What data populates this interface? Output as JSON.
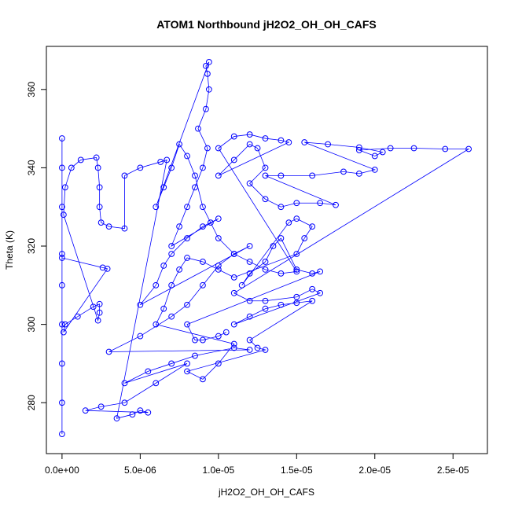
{
  "chart_data": {
    "type": "scatter",
    "title": "ATOM1 Northbound jH2O2_OH_OH_CAFS",
    "xlabel": "jH2O2_OH_OH_CAFS",
    "ylabel": "Theta (K)",
    "xlim": [
      -1e-06,
      2.72e-05
    ],
    "ylim": [
      267,
      371
    ],
    "x_ticks": [
      0,
      5e-06,
      1e-05,
      1.5e-05,
      2e-05,
      2.5e-05
    ],
    "x_tick_labels": [
      "0.0e+00",
      "5.0e-06",
      "1.0e-05",
      "1.5e-05",
      "2.0e-05",
      "2.5e-05"
    ],
    "y_ticks": [
      280,
      300,
      320,
      340,
      360
    ],
    "y_tick_labels": [
      "280",
      "300",
      "320",
      "340",
      "360"
    ],
    "marker": "open-circle",
    "connected": true,
    "grid": false,
    "colors": {
      "series": "#0000ff",
      "axis": "#000000",
      "background": "#ffffff"
    },
    "series": [
      {
        "points": [
          [
            0,
            272
          ],
          [
            0,
            280
          ],
          [
            0,
            290
          ],
          [
            0,
            300
          ],
          [
            0,
            310
          ],
          [
            0,
            318
          ],
          [
            0,
            330
          ],
          [
            0,
            340
          ],
          [
            0,
            347.5
          ],
          [
            0,
            317
          ],
          [
            2.6e-06,
            314.5
          ],
          [
            2.9e-06,
            314.2
          ],
          [
            1e-07,
            298
          ],
          [
            2e-07,
            300
          ],
          [
            1e-06,
            302
          ],
          [
            2e-06,
            304.5
          ],
          [
            2.4e-06,
            305.2
          ],
          [
            2.4e-06,
            303
          ],
          [
            2.3e-06,
            301
          ],
          [
            1e-07,
            328
          ],
          [
            2e-07,
            335
          ],
          [
            6e-07,
            340
          ],
          [
            1.2e-06,
            342
          ],
          [
            2.2e-06,
            342.6
          ],
          [
            2.3e-06,
            340
          ],
          [
            2.4e-06,
            335
          ],
          [
            2.4e-06,
            330
          ],
          [
            2.5e-06,
            326
          ],
          [
            3e-06,
            325
          ],
          [
            4e-06,
            324.5
          ],
          [
            4e-06,
            338
          ],
          [
            5e-06,
            340
          ],
          [
            6.3e-06,
            341.5
          ],
          [
            6.7e-06,
            342
          ],
          [
            3.5e-06,
            276
          ],
          [
            4.5e-06,
            277
          ],
          [
            5e-06,
            278
          ],
          [
            5.5e-06,
            277.5
          ],
          [
            1.5e-06,
            278
          ],
          [
            2.5e-06,
            279
          ],
          [
            4e-06,
            280
          ],
          [
            6e-06,
            285
          ],
          [
            8e-06,
            290
          ],
          [
            4e-06,
            285
          ],
          [
            5.5e-06,
            288
          ],
          [
            7e-06,
            290
          ],
          [
            8.5e-06,
            292
          ],
          [
            1.1e-05,
            294
          ],
          [
            1.2e-05,
            293.5
          ],
          [
            3e-06,
            293
          ],
          [
            5e-06,
            297
          ],
          [
            7e-06,
            302
          ],
          [
            8e-06,
            305
          ],
          [
            9e-06,
            310
          ],
          [
            1e-05,
            315
          ],
          [
            1.1e-05,
            318
          ],
          [
            1.2e-05,
            320
          ],
          [
            5e-06,
            305
          ],
          [
            6e-06,
            310
          ],
          [
            6.5e-06,
            315
          ],
          [
            7e-06,
            318
          ],
          [
            8e-06,
            322
          ],
          [
            9e-06,
            325
          ],
          [
            1e-05,
            327
          ],
          [
            7e-06,
            320
          ],
          [
            7.5e-06,
            325
          ],
          [
            8e-06,
            330
          ],
          [
            8.5e-06,
            335
          ],
          [
            9e-06,
            340
          ],
          [
            9.3e-06,
            345
          ],
          [
            8.7e-06,
            350
          ],
          [
            9.2e-06,
            355
          ],
          [
            9.4e-06,
            360
          ],
          [
            9.3e-06,
            364
          ],
          [
            9.2e-06,
            366
          ],
          [
            9.4e-06,
            367
          ],
          [
            6e-06,
            330
          ],
          [
            6.5e-06,
            335
          ],
          [
            7e-06,
            340
          ],
          [
            7.5e-06,
            346
          ],
          [
            8e-06,
            343
          ],
          [
            8.5e-06,
            338
          ],
          [
            9e-06,
            330
          ],
          [
            9.5e-06,
            326
          ],
          [
            1e-05,
            322
          ],
          [
            1.1e-05,
            318
          ],
          [
            1.2e-05,
            316
          ],
          [
            1.3e-05,
            314
          ],
          [
            1.4e-05,
            313
          ],
          [
            1.5e-05,
            313.5
          ],
          [
            1e-05,
            345
          ],
          [
            1.1e-05,
            348
          ],
          [
            1.2e-05,
            348.5
          ],
          [
            1.3e-05,
            347.5
          ],
          [
            1.4e-05,
            347
          ],
          [
            1.45e-05,
            346.5
          ],
          [
            1e-05,
            338
          ],
          [
            1.1e-05,
            342
          ],
          [
            1.2e-05,
            346
          ],
          [
            1.25e-05,
            345
          ],
          [
            1.3e-05,
            340
          ],
          [
            1.2e-05,
            336
          ],
          [
            1.3e-05,
            332
          ],
          [
            1.4e-05,
            330
          ],
          [
            1.5e-05,
            331
          ],
          [
            1.65e-05,
            331
          ],
          [
            1.75e-05,
            330.5
          ],
          [
            1.3e-05,
            338
          ],
          [
            1.4e-05,
            338
          ],
          [
            1.6e-05,
            338
          ],
          [
            1.8e-05,
            339
          ],
          [
            1.9e-05,
            338.5
          ],
          [
            2e-05,
            339.5
          ],
          [
            1.55e-05,
            346.5
          ],
          [
            1.7e-05,
            346
          ],
          [
            1.9e-05,
            345.2
          ],
          [
            2.05e-05,
            344
          ],
          [
            2e-05,
            343
          ],
          [
            1.9e-05,
            344.5
          ],
          [
            2.1e-05,
            345
          ],
          [
            2.25e-05,
            345
          ],
          [
            2.45e-05,
            344.8
          ],
          [
            2.6e-05,
            344.8
          ],
          [
            1.1e-05,
            308
          ],
          [
            1.2e-05,
            306
          ],
          [
            1.3e-05,
            306
          ],
          [
            1.5e-05,
            307
          ],
          [
            1.6e-05,
            309
          ],
          [
            1.65e-05,
            308
          ],
          [
            1.1e-05,
            300
          ],
          [
            1.2e-05,
            302
          ],
          [
            1.3e-05,
            304
          ],
          [
            1.4e-05,
            305
          ],
          [
            1.5e-05,
            305.5
          ],
          [
            1.6e-05,
            306
          ],
          [
            1.2e-05,
            296
          ],
          [
            1.25e-05,
            294
          ],
          [
            1.3e-05,
            293.5
          ],
          [
            8e-06,
            288
          ],
          [
            9e-06,
            286
          ],
          [
            1e-05,
            290
          ],
          [
            1.1e-05,
            295
          ],
          [
            6e-06,
            300
          ],
          [
            6.5e-06,
            304
          ],
          [
            7e-06,
            310
          ],
          [
            7.5e-06,
            314
          ],
          [
            8e-06,
            317
          ],
          [
            9e-06,
            316
          ],
          [
            1e-05,
            314
          ],
          [
            1.1e-05,
            312
          ],
          [
            1.5e-05,
            318
          ],
          [
            1.55e-05,
            322
          ],
          [
            1.6e-05,
            325
          ],
          [
            1.5e-05,
            327
          ],
          [
            1.45e-05,
            326
          ],
          [
            1.15e-05,
            310
          ],
          [
            1.2e-05,
            313
          ],
          [
            1.3e-05,
            316
          ],
          [
            1.35e-05,
            320
          ],
          [
            1.4e-05,
            322
          ],
          [
            1.5e-05,
            314
          ],
          [
            1.6e-05,
            313
          ],
          [
            1.65e-05,
            313.5
          ],
          [
            8e-06,
            300
          ],
          [
            8.5e-06,
            296
          ],
          [
            9e-06,
            296
          ],
          [
            1e-05,
            297
          ],
          [
            1.05e-05,
            298
          ]
        ]
      }
    ]
  }
}
